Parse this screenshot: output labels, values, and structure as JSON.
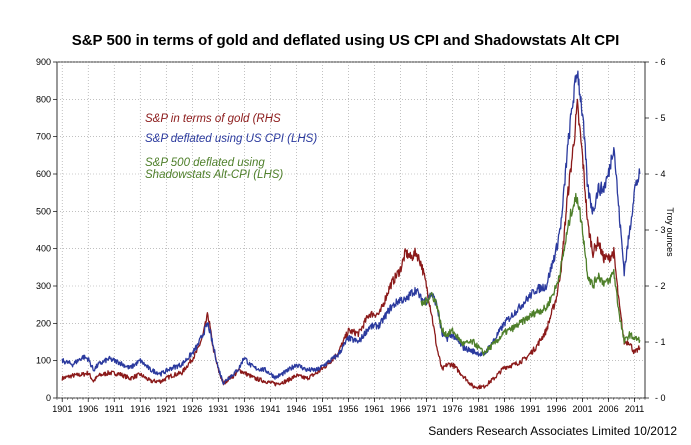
{
  "chart_data": {
    "type": "line",
    "title": "S&P 500 in terms of gold and deflated using US CPI and Shadowstats Alt CPI",
    "y2label": "Troy ounces",
    "credit": "Sanders Research Associates Limited 10/2012",
    "ylim": [
      0,
      900
    ],
    "y2lim": [
      0,
      6
    ],
    "xlim": [
      1900,
      2013
    ],
    "x_ticks": [
      "1901",
      "1906",
      "1911",
      "1916",
      "1921",
      "1926",
      "1931",
      "1936",
      "1941",
      "1946",
      "1951",
      "1956",
      "1961",
      "1966",
      "1971",
      "1976",
      "1981",
      "1986",
      "1991",
      "1996",
      "2001",
      "2006",
      "2011"
    ],
    "y_ticks": [
      "0",
      "100",
      "200",
      "300",
      "400",
      "500",
      "600",
      "700",
      "800",
      "900"
    ],
    "y2_ticks": [
      "0",
      "1",
      "2",
      "3",
      "4",
      "5",
      "6"
    ],
    "grid": true,
    "colors": {
      "gold": "#8b1a1a",
      "cpi": "#2b3a9e",
      "shadow": "#4e7f2a"
    },
    "series": [
      {
        "name": "S&P in terms of gold (RHS",
        "axis": "right",
        "color": "#8b1a1a",
        "x": [
          1901,
          1903,
          1905,
          1906,
          1907,
          1908,
          1910,
          1912,
          1914,
          1916,
          1918,
          1920,
          1922,
          1924,
          1926,
          1927,
          1928,
          1929,
          1930,
          1931,
          1932,
          1933,
          1934,
          1935,
          1936,
          1937,
          1938,
          1940,
          1942,
          1944,
          1946,
          1948,
          1950,
          1952,
          1954,
          1956,
          1958,
          1960,
          1962,
          1964,
          1966,
          1967,
          1968,
          1969,
          1970,
          1971,
          1972,
          1973,
          1974,
          1975,
          1976,
          1978,
          1980,
          1982,
          1984,
          1986,
          1988,
          1990,
          1992,
          1994,
          1996,
          1997,
          1998,
          1999,
          2000,
          2001,
          2002,
          2003,
          2004,
          2005,
          2006,
          2007,
          2008,
          2009,
          2010,
          2011,
          2012
        ],
        "values": [
          0.35,
          0.4,
          0.42,
          0.45,
          0.3,
          0.4,
          0.45,
          0.43,
          0.35,
          0.42,
          0.3,
          0.3,
          0.4,
          0.45,
          0.7,
          0.85,
          1.1,
          1.5,
          0.9,
          0.5,
          0.25,
          0.35,
          0.4,
          0.5,
          0.45,
          0.4,
          0.35,
          0.3,
          0.25,
          0.3,
          0.4,
          0.35,
          0.45,
          0.6,
          0.8,
          1.2,
          1.15,
          1.5,
          1.5,
          2.0,
          2.3,
          2.6,
          2.5,
          2.6,
          2.4,
          2.0,
          1.5,
          0.9,
          0.5,
          0.6,
          0.6,
          0.4,
          0.2,
          0.2,
          0.35,
          0.55,
          0.6,
          0.7,
          0.9,
          1.2,
          1.8,
          2.4,
          3.5,
          4.3,
          5.2,
          4.3,
          3.1,
          2.6,
          2.8,
          2.5,
          2.5,
          2.6,
          1.7,
          1.0,
          1.0,
          0.8,
          0.9
        ]
      },
      {
        "name": "S&P deflated using US CPI (LHS)",
        "axis": "left",
        "color": "#2b3a9e",
        "x": [
          1901,
          1903,
          1905,
          1906,
          1907,
          1908,
          1910,
          1912,
          1914,
          1916,
          1918,
          1920,
          1922,
          1924,
          1926,
          1927,
          1928,
          1929,
          1930,
          1931,
          1932,
          1933,
          1934,
          1935,
          1936,
          1937,
          1938,
          1940,
          1942,
          1944,
          1946,
          1948,
          1950,
          1952,
          1954,
          1956,
          1958,
          1960,
          1962,
          1964,
          1966,
          1967,
          1968,
          1969,
          1970,
          1971,
          1972,
          1973,
          1974,
          1975,
          1976,
          1978,
          1980,
          1982,
          1984,
          1986,
          1988,
          1990,
          1992,
          1994,
          1996,
          1997,
          1998,
          1999,
          2000,
          2001,
          2002,
          2003,
          2004,
          2005,
          2006,
          2007,
          2008,
          2009,
          2010,
          2011,
          2012
        ],
        "values": [
          100,
          90,
          110,
          105,
          75,
          90,
          105,
          95,
          80,
          100,
          75,
          65,
          80,
          90,
          120,
          140,
          170,
          200,
          140,
          80,
          40,
          55,
          65,
          80,
          110,
          90,
          80,
          75,
          55,
          70,
          90,
          75,
          75,
          95,
          115,
          160,
          150,
          190,
          195,
          240,
          265,
          260,
          280,
          290,
          265,
          260,
          280,
          250,
          170,
          160,
          170,
          135,
          125,
          115,
          155,
          200,
          230,
          260,
          290,
          300,
          400,
          480,
          650,
          780,
          880,
          760,
          560,
          500,
          560,
          560,
          600,
          680,
          500,
          340,
          440,
          560,
          600
        ]
      },
      {
        "name": "S&P 500 deflated using\nShadowstats Alt-CPI (LHS)",
        "axis": "left",
        "color": "#4e7f2a",
        "x": [
          1970,
          1971,
          1972,
          1973,
          1974,
          1975,
          1976,
          1978,
          1980,
          1982,
          1984,
          1986,
          1988,
          1990,
          1992,
          1994,
          1996,
          1997,
          1998,
          1999,
          2000,
          2001,
          2002,
          2003,
          2004,
          2005,
          2006,
          2007,
          2008,
          2009,
          2010,
          2011,
          2012
        ],
        "values": [
          250,
          260,
          280,
          250,
          180,
          170,
          180,
          145,
          150,
          120,
          145,
          175,
          190,
          210,
          230,
          240,
          300,
          360,
          440,
          510,
          540,
          450,
          330,
          300,
          330,
          310,
          310,
          340,
          230,
          150,
          170,
          160,
          155
        ]
      }
    ]
  }
}
